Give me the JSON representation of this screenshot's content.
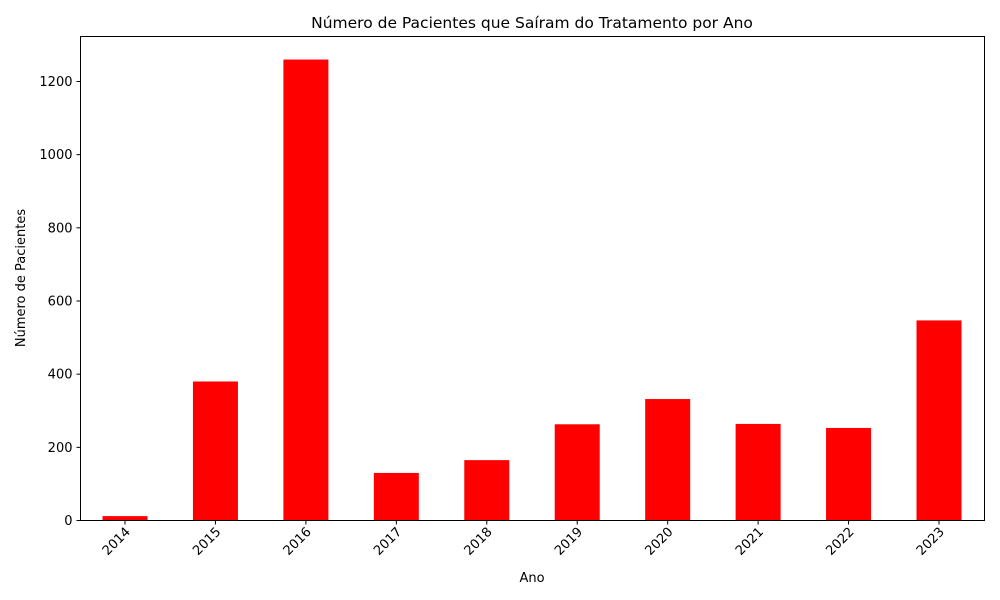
{
  "chart_data": {
    "type": "bar",
    "title": "Número de Pacientes que Saíram do Tratamento por Ano",
    "xlabel": "Ano",
    "ylabel": "Número de Pacientes",
    "categories": [
      "2014",
      "2015",
      "2016",
      "2017",
      "2018",
      "2019",
      "2020",
      "2021",
      "2022",
      "2023"
    ],
    "values": [
      12,
      380,
      1260,
      130,
      165,
      263,
      332,
      264,
      253,
      547
    ],
    "ylim": [
      0,
      1323
    ],
    "yticks": [
      0,
      200,
      400,
      600,
      800,
      1000,
      1200
    ],
    "ytick_labels": [
      "0",
      "200",
      "400",
      "600",
      "800",
      "1000",
      "1200"
    ],
    "grid": false,
    "legend": "none",
    "bar_color": "#ff0000"
  }
}
